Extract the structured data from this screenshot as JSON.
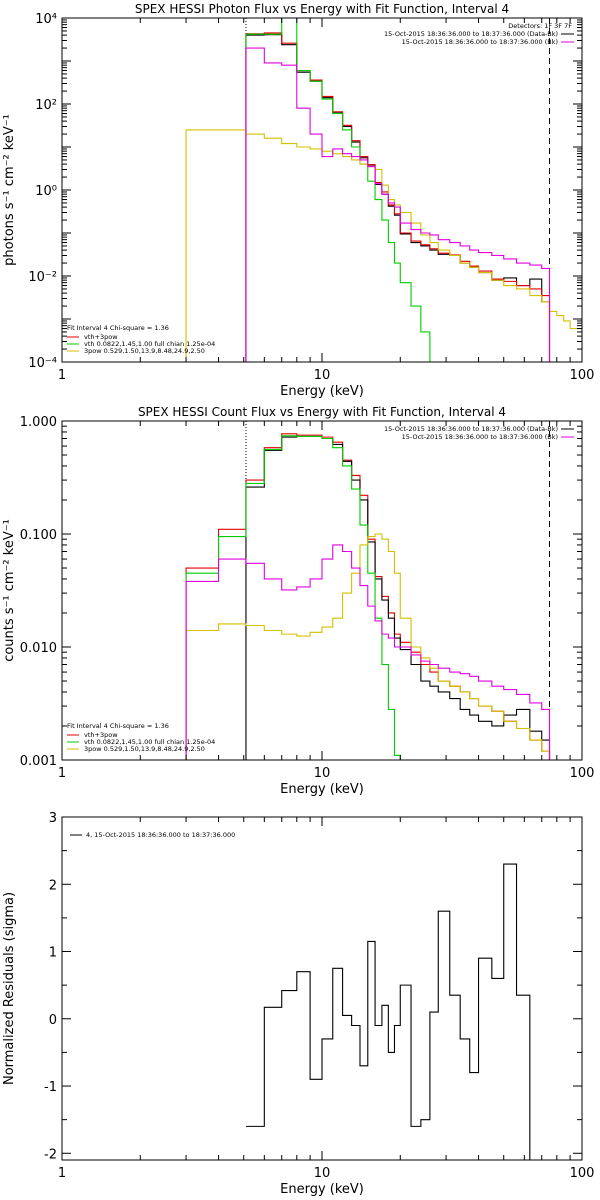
{
  "chart_data": [
    {
      "type": "line",
      "title": "SPEX HESSI Photon Flux vs Energy with Fit Function, Interval 4",
      "xlabel": "Energy (keV)",
      "ylabel": "photons s⁻¹ cm⁻² keV⁻¹",
      "xscale": "log",
      "yscale": "log",
      "xlim": [
        1,
        100
      ],
      "ylim": [
        0.0001,
        10000
      ],
      "xticks": [
        {
          "v": 1,
          "label": "1"
        },
        {
          "v": 10,
          "label": "10"
        },
        {
          "v": 100,
          "label": "100"
        }
      ],
      "yticks": [
        {
          "v": 0.0001,
          "label": "10⁻⁴"
        },
        {
          "v": 0.01,
          "label": "10⁻²"
        },
        {
          "v": 1,
          "label": "10⁰"
        },
        {
          "v": 100,
          "label": "10²"
        },
        {
          "v": 10000,
          "label": "10⁴"
        }
      ],
      "vlines": [
        {
          "x": 5.1,
          "style": "dotted"
        },
        {
          "x": 75,
          "style": "dashed"
        }
      ],
      "legend_tr": [
        {
          "text": "Detectors: 1F 3F 7F",
          "color": ""
        },
        {
          "text": "15-Oct-2015 18:36:36.000 to 18:37:36.000 (Data-Bk)",
          "color": "#000000"
        },
        {
          "text": "15-Oct-2015 18:36:36.000 to 18:37:36.000 (Bk)",
          "color": "#e000e0"
        }
      ],
      "legend_bl": [
        {
          "text": "Fit Interval  4     Chi-square = 1.36",
          "color": ""
        },
        {
          "text": "vth+3pow",
          "color": "#e00000"
        },
        {
          "text": "vth 0.0822,1.45,1.00  full chian 1.25e-04",
          "color": "#00cc00"
        },
        {
          "text": "3pow 0.529,1.50,13.9,8.48,24.9,2.50",
          "color": "#d4c000"
        }
      ],
      "series": [
        {
          "name": "Data-Bk",
          "color": "#000000",
          "edges": [
            5.1,
            6,
            7,
            8,
            9,
            10,
            11,
            12,
            13,
            14,
            15,
            16,
            17,
            18,
            19,
            20,
            22,
            24,
            26,
            28,
            31,
            34,
            37,
            40,
            45,
            50,
            56,
            63,
            70,
            75
          ],
          "values": [
            4000,
            4100,
            2400,
            550,
            340,
            140,
            62,
            30,
            13,
            5.6,
            3.6,
            1.35,
            0.8,
            0.42,
            0.26,
            0.095,
            0.06,
            0.05,
            0.04,
            0.032,
            0.03,
            0.02,
            0.016,
            0.012,
            0.008,
            0.009,
            0.006,
            0.0085,
            0.0025
          ]
        },
        {
          "name": "vth+3pow",
          "color": "#e00000",
          "edges": [
            5.1,
            6,
            7,
            8,
            9,
            10,
            11,
            12,
            13,
            14,
            15,
            16,
            17,
            18,
            19,
            20,
            22,
            24,
            26,
            28,
            31,
            34,
            37,
            40,
            45,
            50,
            56,
            63,
            70,
            75
          ],
          "values": [
            4300,
            4500,
            2600,
            600,
            360,
            150,
            66,
            32,
            14,
            6,
            3.9,
            1.5,
            0.9,
            0.45,
            0.28,
            0.1,
            0.065,
            0.053,
            0.043,
            0.034,
            0.031,
            0.022,
            0.017,
            0.013,
            0.0085,
            0.0075,
            0.006,
            0.005,
            0.0035
          ]
        },
        {
          "name": "vth",
          "color": "#00cc00",
          "edges": [
            5.1,
            6,
            7,
            8,
            9,
            10,
            11,
            12,
            13,
            14,
            15,
            16,
            17,
            18,
            19,
            20,
            22,
            24,
            26,
            28
          ],
          "values": [
            4200,
            4200,
            10000,
            600,
            340,
            130,
            60,
            25,
            10,
            4,
            1.6,
            0.6,
            0.2,
            0.06,
            0.02,
            0.007,
            0.002,
            0.0005,
            0.0001
          ]
        },
        {
          "name": "3pow",
          "color": "#d4c000",
          "edges": [
            3,
            5.1,
            6,
            7,
            8,
            9,
            10,
            11,
            12,
            13,
            14,
            15,
            16,
            17,
            18,
            19,
            20,
            22,
            24,
            26,
            28,
            31,
            34,
            37,
            40,
            45,
            50,
            56,
            63,
            70,
            75,
            80,
            85,
            90,
            100
          ],
          "values": [
            25,
            20,
            16,
            12,
            10,
            9,
            8,
            7,
            6,
            5,
            4,
            3.5,
            3,
            1.3,
            0.6,
            0.45,
            0.3,
            0.17,
            0.09,
            0.06,
            0.04,
            0.03,
            0.02,
            0.016,
            0.012,
            0.008,
            0.006,
            0.005,
            0.0035,
            0.0025,
            0.0015,
            0.0012,
            0.0009,
            0.0006
          ]
        },
        {
          "name": "Bk",
          "color": "#e000e0",
          "edges": [
            5.1,
            6,
            7,
            8,
            9,
            10,
            11,
            12,
            13,
            14,
            15,
            16,
            17,
            18,
            19,
            20,
            22,
            24,
            26,
            28,
            31,
            34,
            37,
            40,
            45,
            50,
            56,
            63,
            70,
            75
          ],
          "values": [
            2000,
            900,
            800,
            80,
            20,
            6,
            9,
            7,
            6,
            5,
            3.5,
            1.4,
            0.8,
            0.5,
            0.4,
            0.17,
            0.12,
            0.1,
            0.09,
            0.07,
            0.06,
            0.05,
            0.04,
            0.035,
            0.03,
            0.025,
            0.02,
            0.018,
            0.015
          ]
        }
      ]
    },
    {
      "type": "line",
      "title": "SPEX HESSI Count Flux vs Energy with Fit Function, Interval 4",
      "xlabel": "Energy (keV)",
      "ylabel": "counts s⁻¹ cm⁻² keV⁻¹",
      "xscale": "log",
      "yscale": "log",
      "xlim": [
        1,
        100
      ],
      "ylim": [
        0.001,
        1
      ],
      "xticks": [
        {
          "v": 1,
          "label": "1"
        },
        {
          "v": 10,
          "label": "10"
        },
        {
          "v": 100,
          "label": "100"
        }
      ],
      "yticks": [
        {
          "v": 0.001,
          "label": "0.001"
        },
        {
          "v": 0.01,
          "label": "0.010"
        },
        {
          "v": 0.1,
          "label": "0.100"
        },
        {
          "v": 1,
          "label": "1.000"
        }
      ],
      "vlines": [
        {
          "x": 5.1,
          "style": "dotted"
        },
        {
          "x": 75,
          "style": "dashed"
        }
      ],
      "legend_tr": [
        {
          "text": "15-Oct-2015 18:36:36.000 to 18:37:36.000 (Data-Bk)",
          "color": "#000000"
        },
        {
          "text": "15-Oct-2015 18:36:36.000 to 18:37:36.000 (Bk)",
          "color": "#e000e0"
        }
      ],
      "legend_bl": [
        {
          "text": "Fit Interval  4     Chi-square = 1.36",
          "color": ""
        },
        {
          "text": "vth+3pow",
          "color": "#e00000"
        },
        {
          "text": "vth 0.0822,1.45,1.00  full chian 1.25e-04",
          "color": "#00cc00"
        },
        {
          "text": "3pow 0.529,1.50,13.9,8.48,24.9,2.50",
          "color": "#d4c000"
        }
      ],
      "series": [
        {
          "name": "vth+3pow",
          "color": "#e00000",
          "edges": [
            3,
            4,
            5.1,
            6,
            7,
            8,
            9,
            10,
            11,
            12,
            13,
            14,
            15,
            16,
            17,
            18,
            19,
            20,
            22,
            24,
            26,
            28,
            31,
            34,
            37,
            40,
            45,
            50,
            56,
            63,
            70,
            75
          ],
          "values": [
            0.05,
            0.11,
            0.3,
            0.58,
            0.77,
            0.75,
            0.75,
            0.72,
            0.65,
            0.45,
            0.33,
            0.22,
            0.09,
            0.042,
            0.028,
            0.02,
            0.013,
            0.011,
            0.009,
            0.007,
            0.006,
            0.005,
            0.0045,
            0.004,
            0.0035,
            0.003,
            0.0027,
            0.0022,
            0.0019,
            0.0015,
            0.0012
          ]
        },
        {
          "name": "Data-Bk",
          "color": "#000000",
          "edges": [
            5.1,
            6,
            7,
            8,
            9,
            10,
            11,
            12,
            13,
            14,
            15,
            16,
            17,
            18,
            19,
            20,
            22,
            24,
            26,
            28,
            31,
            34,
            37,
            40,
            45,
            50,
            56,
            63,
            70,
            75
          ],
          "values": [
            0.26,
            0.55,
            0.72,
            0.73,
            0.73,
            0.7,
            0.62,
            0.44,
            0.3,
            0.2,
            0.085,
            0.04,
            0.026,
            0.018,
            0.012,
            0.0095,
            0.007,
            0.005,
            0.0045,
            0.004,
            0.0035,
            0.0028,
            0.0025,
            0.0022,
            0.002,
            0.0025,
            0.0028,
            0.0018,
            0.0015
          ]
        },
        {
          "name": "vth",
          "color": "#00cc00",
          "edges": [
            3,
            4,
            5.1,
            6,
            7,
            8,
            9,
            10,
            11,
            12,
            13,
            14,
            15,
            16,
            17,
            18,
            19,
            20,
            22
          ],
          "values": [
            0.045,
            0.095,
            0.28,
            0.56,
            0.74,
            0.73,
            0.73,
            0.7,
            0.58,
            0.4,
            0.25,
            0.12,
            0.045,
            0.018,
            0.007,
            0.0028,
            0.0011,
            0.0001
          ]
        },
        {
          "name": "3pow",
          "color": "#d4c000",
          "edges": [
            3,
            4,
            5.1,
            6,
            7,
            8,
            9,
            10,
            11,
            12,
            13,
            14,
            15,
            16,
            17,
            18,
            19,
            20,
            22,
            24,
            26,
            28,
            31,
            34,
            37,
            40,
            45,
            50,
            56,
            63,
            70,
            75
          ],
          "values": [
            0.014,
            0.016,
            0.0155,
            0.014,
            0.013,
            0.0125,
            0.0135,
            0.015,
            0.018,
            0.03,
            0.045,
            0.08,
            0.095,
            0.1,
            0.09,
            0.07,
            0.045,
            0.018,
            0.01,
            0.008,
            0.0065,
            0.005,
            0.0045,
            0.004,
            0.0035,
            0.003,
            0.0027,
            0.0022,
            0.0019,
            0.0015,
            0.0012
          ]
        },
        {
          "name": "Bk",
          "color": "#e000e0",
          "edges": [
            3,
            4,
            5.1,
            6,
            7,
            8,
            9,
            10,
            11,
            12,
            13,
            14,
            15,
            16,
            17,
            18,
            19,
            20,
            22,
            24,
            26,
            28,
            31,
            34,
            37,
            40,
            45,
            50,
            56,
            63,
            70,
            75
          ],
          "values": [
            0.038,
            0.06,
            0.055,
            0.04,
            0.032,
            0.034,
            0.04,
            0.06,
            0.08,
            0.07,
            0.05,
            0.035,
            0.023,
            0.017,
            0.013,
            0.012,
            0.01,
            0.01,
            0.0085,
            0.0075,
            0.007,
            0.0065,
            0.006,
            0.0058,
            0.0055,
            0.005,
            0.0045,
            0.0042,
            0.0038,
            0.0032,
            0.0028
          ]
        }
      ]
    },
    {
      "type": "line",
      "title": "",
      "xlabel": "Energy (keV)",
      "ylabel": "Normalized Residuals (sigma)",
      "xscale": "log",
      "yscale": "linear",
      "xlim": [
        1,
        100
      ],
      "ylim": [
        -2.1,
        3
      ],
      "xticks": [
        {
          "v": 1,
          "label": "1"
        },
        {
          "v": 10,
          "label": "10"
        },
        {
          "v": 100,
          "label": "100"
        }
      ],
      "yticks": [
        {
          "v": -2,
          "label": "-2"
        },
        {
          "v": -1,
          "label": "-1"
        },
        {
          "v": 0,
          "label": "0"
        },
        {
          "v": 1,
          "label": "1"
        },
        {
          "v": 2,
          "label": "2"
        },
        {
          "v": 3,
          "label": "3"
        }
      ],
      "vlines": [],
      "legend_tl": [
        {
          "text": "4, 15-Oct-2015 18:36:36.000 to 18:37:36.000",
          "color": "#000000"
        }
      ],
      "series": [
        {
          "name": "residuals",
          "color": "#000000",
          "edges": [
            5.1,
            6,
            7,
            8,
            9,
            10,
            11,
            12,
            13,
            14,
            15,
            16,
            17,
            18,
            19,
            20,
            22,
            24,
            26,
            28,
            31,
            34,
            37,
            40,
            45,
            50,
            56,
            63,
            70,
            75
          ],
          "values": [
            -1.6,
            0.17,
            0.42,
            0.7,
            -0.9,
            -0.3,
            0.75,
            0.05,
            -0.1,
            -0.7,
            1.15,
            -0.1,
            0.2,
            -0.5,
            -0.1,
            0.5,
            -1.6,
            -1.5,
            0.1,
            1.6,
            0.35,
            -0.3,
            -0.8,
            0.9,
            0.6,
            2.3,
            0.35,
            -2.1,
            -2.1
          ]
        }
      ]
    }
  ]
}
